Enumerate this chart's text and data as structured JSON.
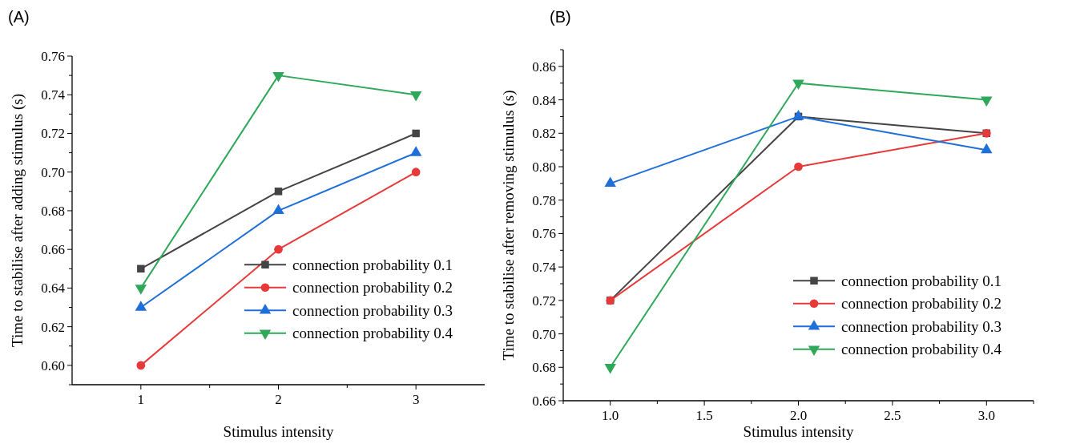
{
  "chart_data": [
    {
      "type": "line",
      "title": "(A)",
      "xlabel": "Stimulus intensity",
      "ylabel": "Time to stabilise after adding stimulus (s)",
      "x": [
        1,
        2,
        3
      ],
      "series": [
        {
          "name": "connection probability 0.1",
          "color": "#444444",
          "marker": "square",
          "values": [
            0.65,
            0.69,
            0.72
          ]
        },
        {
          "name": "connection probability 0.2",
          "color": "#e8393a",
          "marker": "circle",
          "values": [
            0.6,
            0.66,
            0.7
          ]
        },
        {
          "name": "connection probability 0.3",
          "color": "#1f6fd9",
          "marker": "triangle",
          "values": [
            0.63,
            0.68,
            0.71
          ]
        },
        {
          "name": "connection probability 0.4",
          "color": "#2fa85a",
          "marker": "triangle-down",
          "values": [
            0.64,
            0.75,
            0.74
          ]
        }
      ],
      "xlim": [
        0.5,
        3.5
      ],
      "xticks": [
        1,
        {
          "value": 1.5,
          "label": null
        },
        2,
        {
          "value": 2.5,
          "label": null
        },
        3
      ],
      "ylim": [
        0.59,
        0.76
      ],
      "yticks": [
        {
          "value": 0.59,
          "label": null
        },
        "0.60",
        {
          "value": 0.61,
          "label": null
        },
        {
          "value": 0.62,
          "label": "0.62"
        },
        {
          "value": 0.63,
          "label": null
        },
        {
          "value": 0.64,
          "label": "0.64"
        },
        {
          "value": 0.65,
          "label": null
        },
        {
          "value": 0.66,
          "label": "0.66"
        },
        {
          "value": 0.67,
          "label": null
        },
        {
          "value": 0.68,
          "label": "0.68"
        },
        {
          "value": 0.69,
          "label": null
        },
        {
          "value": 0.7,
          "label": "0.70"
        },
        {
          "value": 0.71,
          "label": null
        },
        {
          "value": 0.72,
          "label": "0.72"
        },
        {
          "value": 0.73,
          "label": null
        },
        {
          "value": 0.74,
          "label": "0.74"
        },
        {
          "value": 0.75,
          "label": null
        },
        {
          "value": 0.76,
          "label": "0.76"
        }
      ],
      "grid": false,
      "legend": "bottom right"
    },
    {
      "type": "line",
      "title": "(B)",
      "xlabel": "Stimulus intensity",
      "ylabel": "Time to stabilise after removing stimulus (s)",
      "x": [
        1,
        2,
        3
      ],
      "series": [
        {
          "name": "connection probability 0.1",
          "color": "#444444",
          "marker": "square",
          "values": [
            0.72,
            0.83,
            0.82
          ]
        },
        {
          "name": "connection probability 0.2",
          "color": "#e8393a",
          "marker": "circle",
          "values": [
            0.72,
            0.8,
            0.82
          ]
        },
        {
          "name": "connection probability 0.3",
          "color": "#1f6fd9",
          "marker": "triangle",
          "values": [
            0.79,
            0.83,
            0.81
          ]
        },
        {
          "name": "connection probability 0.4",
          "color": "#2fa85a",
          "marker": "triangle-down",
          "values": [
            0.68,
            0.85,
            0.84
          ]
        }
      ],
      "xlim": [
        0.75,
        3.25
      ],
      "xticks": [
        {
          "value": 0.75,
          "label": null
        },
        {
          "value": 1,
          "label": "1.0"
        },
        {
          "value": 1.25,
          "label": null
        },
        1.5,
        {
          "value": 1.75,
          "label": null
        },
        {
          "value": 2,
          "label": "2.0"
        },
        {
          "value": 2.25,
          "label": null
        },
        2.5,
        {
          "value": 2.75,
          "label": null
        },
        {
          "value": 3,
          "label": "3.0"
        },
        {
          "value": 3.25,
          "label": null
        }
      ],
      "ylim": [
        0.66,
        0.87
      ],
      "yticks": [
        {
          "value": 0.66,
          "label": "0.66"
        },
        {
          "value": 0.67,
          "label": null
        },
        {
          "value": 0.68,
          "label": "0.68"
        },
        {
          "value": 0.69,
          "label": null
        },
        {
          "value": 0.7,
          "label": "0.70"
        },
        {
          "value": 0.71,
          "label": null
        },
        {
          "value": 0.72,
          "label": "0.72"
        },
        {
          "value": 0.73,
          "label": null
        },
        {
          "value": 0.74,
          "label": "0.74"
        },
        {
          "value": 0.75,
          "label": null
        },
        {
          "value": 0.76,
          "label": "0.76"
        },
        {
          "value": 0.77,
          "label": null
        },
        {
          "value": 0.78,
          "label": "0.78"
        },
        {
          "value": 0.79,
          "label": null
        },
        {
          "value": 0.8,
          "label": "0.80"
        },
        {
          "value": 0.81,
          "label": null
        },
        {
          "value": 0.82,
          "label": "0.82"
        },
        {
          "value": 0.83,
          "label": null
        },
        {
          "value": 0.84,
          "label": "0.84"
        },
        {
          "value": 0.85,
          "label": null
        },
        {
          "value": 0.86,
          "label": "0.86"
        },
        {
          "value": 0.87,
          "label": null
        }
      ],
      "grid": false,
      "legend": "bottom right"
    }
  ]
}
